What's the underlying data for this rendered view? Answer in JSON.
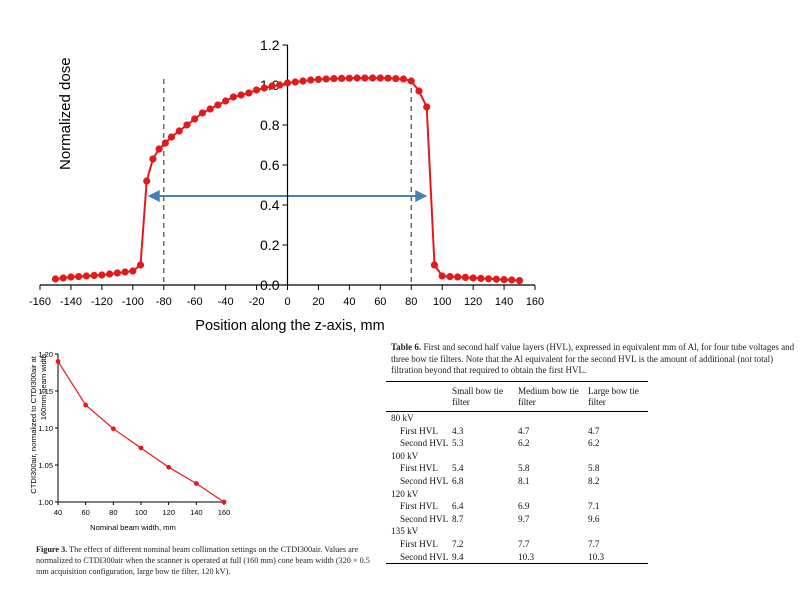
{
  "chart_data": [
    {
      "type": "line",
      "title": "",
      "xlabel": "Position along the z-axis, mm",
      "ylabel": "Normalized dose",
      "xlim": [
        -160,
        160
      ],
      "ylim": [
        0,
        1.2
      ],
      "x_ticks": [
        "-160",
        "-140",
        "-120",
        "-100",
        "-80",
        "-60",
        "-40",
        "-20",
        "0",
        "20",
        "40",
        "60",
        "80",
        "100",
        "120",
        "140",
        "160"
      ],
      "y_ticks": [
        "0.0",
        "0.2",
        "0.4",
        "0.6",
        "0.8",
        "1.0",
        "1.2"
      ],
      "dashed_lines_x": [
        -80,
        80
      ],
      "arrow": {
        "from_x": -91,
        "to_x": 91,
        "y": 0.52
      },
      "series": [
        {
          "name": "Normalized dose",
          "x": [
            -150,
            -145,
            -140,
            -135,
            -130,
            -125,
            -120,
            -115,
            -110,
            -105,
            -100,
            -95,
            -91,
            -87,
            -83,
            -79,
            -75,
            -70,
            -65,
            -60,
            -55,
            -50,
            -45,
            -40,
            -35,
            -30,
            -25,
            -20,
            -15,
            -10,
            -5,
            0,
            5,
            10,
            15,
            20,
            25,
            30,
            35,
            40,
            45,
            50,
            55,
            60,
            65,
            70,
            75,
            80,
            85,
            90,
            95,
            100,
            105,
            110,
            115,
            120,
            125,
            130,
            135,
            140,
            145,
            150
          ],
          "values": [
            0.03,
            0.035,
            0.04,
            0.042,
            0.045,
            0.048,
            0.05,
            0.055,
            0.06,
            0.065,
            0.07,
            0.1,
            0.52,
            0.63,
            0.68,
            0.71,
            0.74,
            0.77,
            0.8,
            0.83,
            0.86,
            0.88,
            0.9,
            0.92,
            0.94,
            0.95,
            0.96,
            0.975,
            0.985,
            0.995,
            1.0,
            1.01,
            1.015,
            1.02,
            1.025,
            1.028,
            1.03,
            1.032,
            1.033,
            1.034,
            1.035,
            1.035,
            1.035,
            1.035,
            1.034,
            1.032,
            1.03,
            1.02,
            0.97,
            0.89,
            0.1,
            0.045,
            0.042,
            0.04,
            0.038,
            0.035,
            0.033,
            0.031,
            0.029,
            0.027,
            0.025,
            0.022
          ]
        }
      ]
    },
    {
      "type": "line",
      "title": "",
      "xlabel": "Nominal beam width, mm",
      "ylabel": "CTDI300air, normalized to CTDI300air at 160mm beam width",
      "xlim": [
        40,
        160
      ],
      "ylim": [
        1.0,
        1.2
      ],
      "x_ticks": [
        "40",
        "60",
        "80",
        "100",
        "120",
        "140",
        "160"
      ],
      "y_ticks": [
        "1.00",
        "1.05",
        "1.10",
        "1.15",
        "1.20"
      ],
      "series": [
        {
          "name": "CTDI ratio",
          "x": [
            40,
            60,
            80,
            100,
            120,
            140,
            160
          ],
          "values": [
            1.19,
            1.131,
            1.099,
            1.073,
            1.047,
            1.025,
            1.0
          ]
        }
      ]
    }
  ],
  "figure3": {
    "label": "Figure 3.",
    "caption": "The effect of different nominal beam collimation settings on the CTDI300air. Values are normalized to CTDI300air when the scanner is operated at full (160 mm) cone beam width (320 × 0.5 mm acquisition configuration, large bow tie filter, 120 kV)."
  },
  "table6": {
    "label": "Table 6.",
    "caption": "First and second half value layers (HVL), expressed in equivalent mm of Al, for four tube voltages and three bow tie filters. Note that the Al equivalent for the second HVL is the amount of additional (not total) filtration beyond that required to obtain the first HVL.",
    "columns": [
      "",
      "Small bow tie filter",
      "Medium bow tie filter",
      "Large bow tie filter"
    ],
    "rows": [
      {
        "type": "group",
        "label": "80 kV"
      },
      {
        "type": "data",
        "label": "First HVL",
        "values": [
          "4.3",
          "4.7",
          "4.7"
        ]
      },
      {
        "type": "data",
        "label": "Second HVL",
        "values": [
          "5.3",
          "6.2",
          "6.2"
        ]
      },
      {
        "type": "group",
        "label": "100 kV"
      },
      {
        "type": "data",
        "label": "First HVL",
        "values": [
          "5.4",
          "5.8",
          "5.8"
        ]
      },
      {
        "type": "data",
        "label": "Second HVL",
        "values": [
          "6.8",
          "8.1",
          "8.2"
        ]
      },
      {
        "type": "group",
        "label": "120 kV"
      },
      {
        "type": "data",
        "label": "First HVL",
        "values": [
          "6.4",
          "6.9",
          "7.1"
        ]
      },
      {
        "type": "data",
        "label": "Second HVL",
        "values": [
          "8.7",
          "9.7",
          "9.6"
        ]
      },
      {
        "type": "group",
        "label": "135 kV"
      },
      {
        "type": "data",
        "label": "First HVL",
        "values": [
          "7.2",
          "7.7",
          "7.7"
        ]
      },
      {
        "type": "data",
        "label": "Second HVL",
        "values": [
          "9.4",
          "10.3",
          "10.3"
        ]
      }
    ]
  },
  "colors": {
    "series": "#e31a1c",
    "arrow": "#4a7fb5",
    "axis": "#000000",
    "dash": "#555555"
  }
}
